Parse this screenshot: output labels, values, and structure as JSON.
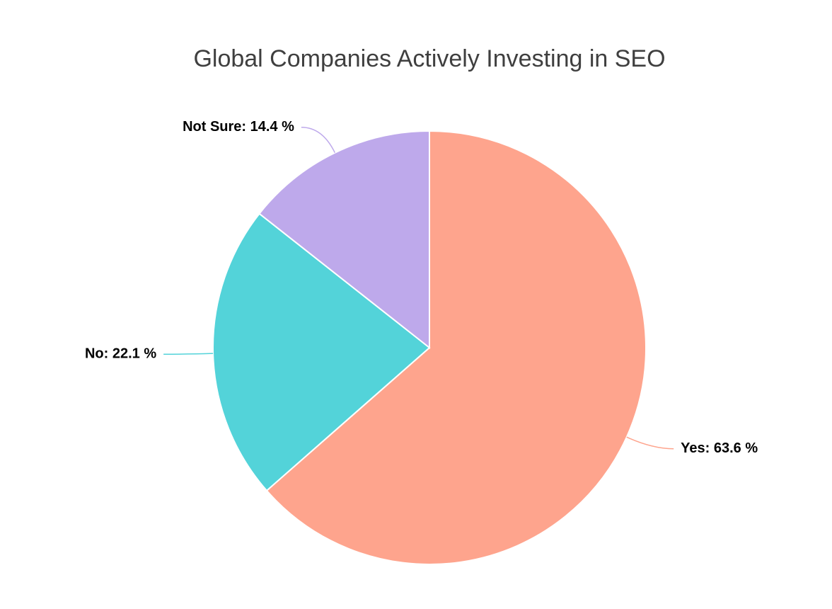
{
  "chart_data": {
    "type": "pie",
    "title": "Global Companies Actively Investing in SEO",
    "categories": [
      "Yes",
      "No",
      "Not Sure"
    ],
    "values": [
      63.6,
      22.1,
      14.4
    ],
    "value_labels": [
      "Yes: 63.6 %",
      "No: 22.1 %",
      "Not Sure: 14.4 %"
    ],
    "colors": [
      "#fea48d",
      "#53d3d9",
      "#bea9eb"
    ]
  }
}
